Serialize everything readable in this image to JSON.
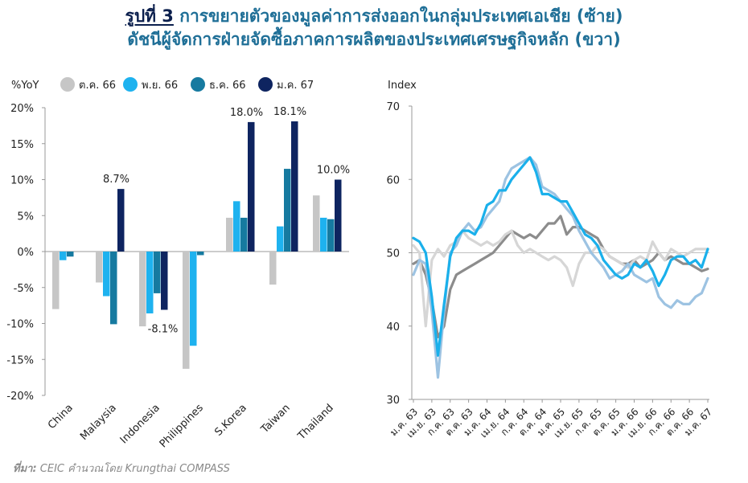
{
  "title": {
    "figure_no": "รูปที่ 3",
    "line1": "การขยายตัวของมูลค่าการส่งออกในกลุ่มประเทศเอเชีย (ซ้าย)",
    "line2": "ดัชนีผู้จัดการฝ่ายจัดซื้อภาคการผลิตของประเทศเศรษฐกิจหลัก (ขวา)"
  },
  "source": {
    "label": "ที่มา:",
    "text": "CEIC คำนวณโดย Krungthai COMPASS"
  },
  "colors": {
    "gray": "#c6c6c6",
    "light_blue": "#1eb2ef",
    "teal": "#167aa0",
    "navy": "#0e2460",
    "line_dark_gray": "#8c8c8c",
    "line_light_gray": "#d6d6d6",
    "line_light_blue": "#9dc3e2",
    "line_bright_blue": "#1ab0eb"
  },
  "chart_data": [
    {
      "type": "bar",
      "ylabel": "%YoY",
      "ylim": [
        -20,
        20
      ],
      "yticks": [
        "-20%",
        "-15%",
        "-10%",
        "-5%",
        "0%",
        "5%",
        "10%",
        "15%",
        "20%"
      ],
      "categories": [
        "China",
        "Malaysia",
        "Indonesia",
        "Philippines",
        "S.Korea",
        "Taiwan",
        "Thailand"
      ],
      "series": [
        {
          "name": "ต.ค. 66",
          "color": "#c6c6c6",
          "values": [
            -8.0,
            -4.3,
            -10.4,
            -16.3,
            4.7,
            -4.6,
            7.8
          ]
        },
        {
          "name": "พ.ย. 66",
          "color": "#1eb2ef",
          "values": [
            -1.2,
            -6.2,
            -8.6,
            -13.1,
            7.0,
            3.5,
            4.7
          ]
        },
        {
          "name": "ธ.ค. 66",
          "color": "#167aa0",
          "values": [
            -0.7,
            -10.1,
            -5.8,
            -0.5,
            4.7,
            11.5,
            4.5
          ]
        },
        {
          "name": "ม.ค. 67",
          "color": "#0e2460",
          "values": [
            null,
            8.7,
            -8.1,
            null,
            18.0,
            18.1,
            10.0
          ]
        }
      ],
      "annotations": [
        {
          "category": "Malaysia",
          "series": "ม.ค. 67",
          "text": "8.7%"
        },
        {
          "category": "Indonesia",
          "series": "ม.ค. 67",
          "text": "-8.1%"
        },
        {
          "category": "S.Korea",
          "series": "ม.ค. 67",
          "text": "18.0%"
        },
        {
          "category": "Taiwan",
          "series": "ม.ค. 67",
          "text": "18.1%"
        },
        {
          "category": "Thailand",
          "series": "ม.ค. 67",
          "text": "10.0%"
        }
      ],
      "legend_position": "top"
    },
    {
      "type": "line",
      "ylabel": "Index",
      "ylim": [
        30,
        70
      ],
      "yticks": [
        "30",
        "40",
        "50",
        "60",
        "70"
      ],
      "reference_line": 50,
      "x_ticks": [
        "ม.ค. 63",
        "เม.ย. 63",
        "ก.ค. 63",
        "ต.ค. 63",
        "ม.ค. 64",
        "เม.ย. 64",
        "ก.ค. 64",
        "ต.ค. 64",
        "ม.ค. 65",
        "เม.ย. 65",
        "ก.ค. 65",
        "ต.ค. 65",
        "ม.ค. 66",
        "เม.ย. 66",
        "ก.ค. 66",
        "ต.ค. 66",
        "ม.ค. 67"
      ],
      "series": [
        {
          "color": "#8c8c8c",
          "values": [
            48.5,
            49.0,
            47.0,
            43.5,
            38.5,
            40.0,
            45.0,
            47.0,
            47.5,
            48.0,
            48.5,
            49.0,
            49.5,
            50.0,
            51.0,
            52.0,
            53.0,
            52.5,
            52.0,
            52.5,
            52.0,
            53.0,
            54.0,
            54.0,
            55.0,
            52.5,
            53.5,
            53.5,
            53.0,
            52.5,
            52.0,
            50.5,
            49.5,
            49.0,
            48.5,
            48.5,
            49.0,
            48.0,
            48.5,
            49.0,
            50.0,
            49.0,
            49.5,
            49.0,
            48.5,
            48.5,
            48.0,
            47.5,
            47.8
          ]
        },
        {
          "color": "#d6d6d6",
          "values": [
            51.0,
            50.0,
            40.0,
            49.0,
            50.5,
            49.5,
            51.0,
            51.5,
            53.0,
            52.0,
            51.5,
            51.0,
            51.5,
            51.0,
            51.5,
            52.5,
            53.0,
            51.0,
            50.0,
            50.5,
            50.0,
            49.5,
            49.0,
            49.5,
            49.0,
            48.0,
            45.5,
            48.5,
            50.0,
            50.0,
            51.0,
            50.5,
            49.5,
            49.0,
            48.5,
            48.0,
            49.0,
            49.5,
            49.0,
            51.5,
            50.0,
            49.0,
            50.5,
            50.0,
            49.5,
            50.0,
            50.5,
            50.5,
            50.5
          ]
        },
        {
          "color": "#9dc3e2",
          "values": [
            47.0,
            49.0,
            48.5,
            42.0,
            33.0,
            42.0,
            50.0,
            51.0,
            53.0,
            54.0,
            53.0,
            53.5,
            55.0,
            56.0,
            57.0,
            60.0,
            61.5,
            62.0,
            62.5,
            63.0,
            62.0,
            59.0,
            58.5,
            58.0,
            57.0,
            56.0,
            55.0,
            53.0,
            51.5,
            50.0,
            49.0,
            48.0,
            46.5,
            47.0,
            47.5,
            48.5,
            47.0,
            46.5,
            46.0,
            46.5,
            44.0,
            43.0,
            42.5,
            43.5,
            43.0,
            43.0,
            44.0,
            44.5,
            46.5
          ]
        },
        {
          "color": "#1ab0eb",
          "values": [
            52.0,
            51.5,
            50.0,
            44.0,
            36.0,
            43.0,
            49.5,
            52.0,
            53.0,
            53.0,
            52.5,
            54.0,
            56.5,
            57.0,
            58.5,
            58.5,
            60.0,
            61.0,
            62.0,
            63.0,
            61.0,
            58.0,
            58.0,
            57.5,
            57.0,
            57.0,
            55.5,
            54.0,
            52.5,
            52.0,
            51.0,
            49.0,
            48.0,
            47.0,
            46.5,
            47.0,
            48.5,
            48.0,
            49.0,
            47.5,
            45.5,
            47.0,
            49.0,
            49.5,
            49.5,
            48.5,
            49.0,
            48.0,
            50.5
          ]
        }
      ]
    }
  ]
}
